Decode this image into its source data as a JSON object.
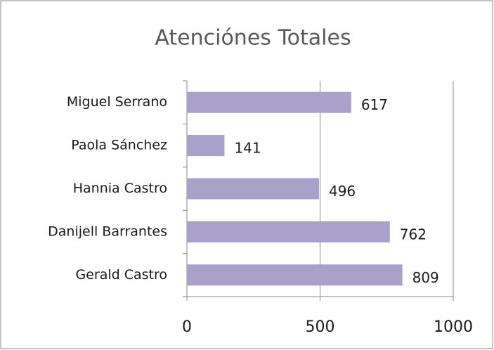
{
  "chart_data": {
    "type": "hbar",
    "title": "Atenciónes Totales",
    "categories": [
      "Miguel Serrano",
      "Paola Sánchez",
      "Hannia Castro",
      "Danijell Barrantes",
      "Gerald Castro"
    ],
    "values": [
      617,
      141,
      496,
      762,
      809
    ],
    "color": "#a9a1c9",
    "xlim": [
      0,
      1000
    ],
    "xticks": [
      0,
      500,
      1000
    ],
    "grid": true
  }
}
